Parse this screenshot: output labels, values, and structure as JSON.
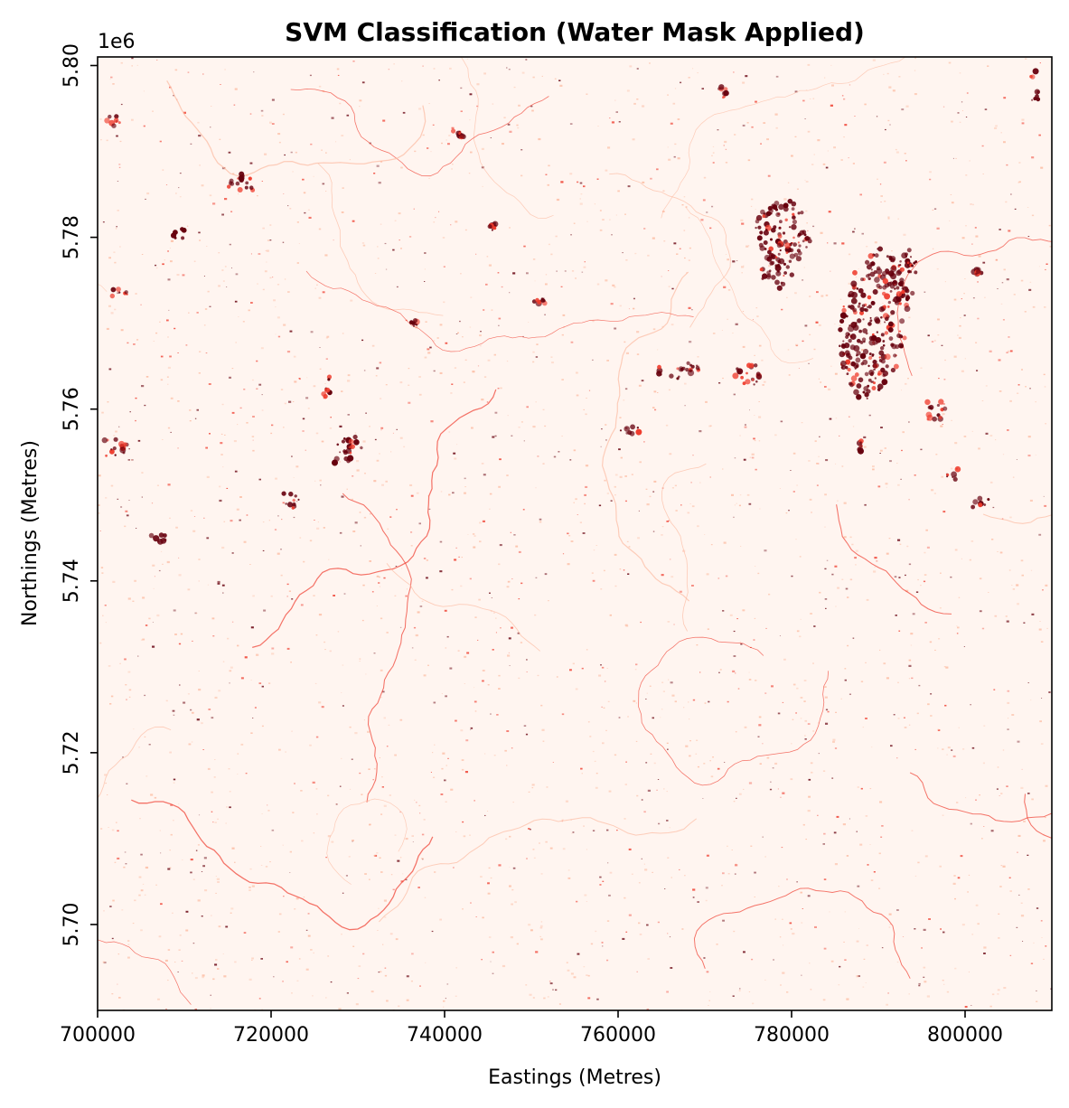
{
  "chart_data": {
    "type": "heatmap",
    "title": "SVM Classification (Water Mask Applied)",
    "xlabel": "Eastings (Metres)",
    "ylabel": "Northings (Metres)",
    "y_offset_label": "1e6",
    "xlim": [
      700000,
      810000
    ],
    "ylim": [
      5690000,
      5801000
    ],
    "x_ticks": [
      {
        "value": 700000,
        "label": "700000"
      },
      {
        "value": 720000,
        "label": "720000"
      },
      {
        "value": 740000,
        "label": "740000"
      },
      {
        "value": 760000,
        "label": "760000"
      },
      {
        "value": 780000,
        "label": "780000"
      },
      {
        "value": 800000,
        "label": "800000"
      }
    ],
    "y_ticks": [
      {
        "value": 5700000,
        "label": "5.70"
      },
      {
        "value": 5720000,
        "label": "5.72"
      },
      {
        "value": 5740000,
        "label": "5.74"
      },
      {
        "value": 5760000,
        "label": "5.76"
      },
      {
        "value": 5780000,
        "label": "5.78"
      },
      {
        "value": 5800000,
        "label": "5.80"
      }
    ],
    "colormap": "Reds",
    "colors": {
      "background": "#fff5f0",
      "low": "#fcbba1",
      "mid": "#ef3b2c",
      "high": "#67000d"
    },
    "patches": [
      {
        "x": 779000,
        "y": 5780500,
        "rx": 3200,
        "ry": 4000,
        "angle": 0,
        "intensity": 1.0
      },
      {
        "x": 778300,
        "y": 5776000,
        "rx": 1800,
        "ry": 2000,
        "angle": 0,
        "intensity": 1.0
      },
      {
        "x": 789500,
        "y": 5770000,
        "rx": 3800,
        "ry": 9000,
        "angle": 8,
        "intensity": 0.95
      },
      {
        "x": 793000,
        "y": 5775500,
        "rx": 1500,
        "ry": 3500,
        "angle": 10,
        "intensity": 0.9
      },
      {
        "x": 767000,
        "y": 5764500,
        "rx": 2400,
        "ry": 1200,
        "angle": 0,
        "intensity": 0.9
      },
      {
        "x": 774800,
        "y": 5764200,
        "rx": 1500,
        "ry": 1700,
        "angle": 0,
        "intensity": 0.9
      },
      {
        "x": 728800,
        "y": 5755000,
        "rx": 1500,
        "ry": 2000,
        "angle": 35,
        "intensity": 0.9
      },
      {
        "x": 726500,
        "y": 5762500,
        "rx": 800,
        "ry": 1500,
        "angle": 20,
        "intensity": 0.8
      },
      {
        "x": 722300,
        "y": 5749500,
        "rx": 1400,
        "ry": 900,
        "angle": 35,
        "intensity": 0.85
      },
      {
        "x": 761500,
        "y": 5757500,
        "rx": 1800,
        "ry": 500,
        "angle": -5,
        "intensity": 0.85
      },
      {
        "x": 709500,
        "y": 5780500,
        "rx": 1400,
        "ry": 700,
        "angle": -10,
        "intensity": 0.9
      },
      {
        "x": 707000,
        "y": 5745000,
        "rx": 900,
        "ry": 600,
        "angle": 0,
        "intensity": 0.85
      },
      {
        "x": 716500,
        "y": 5786000,
        "rx": 1500,
        "ry": 1500,
        "angle": 0,
        "intensity": 0.6
      },
      {
        "x": 751000,
        "y": 5772500,
        "rx": 700,
        "ry": 400,
        "angle": 0,
        "intensity": 0.85
      },
      {
        "x": 745500,
        "y": 5781500,
        "rx": 400,
        "ry": 700,
        "angle": 0,
        "intensity": 0.85
      },
      {
        "x": 736500,
        "y": 5770000,
        "rx": 400,
        "ry": 400,
        "angle": 0,
        "intensity": 0.9
      },
      {
        "x": 772000,
        "y": 5797000,
        "rx": 500,
        "ry": 800,
        "angle": 0,
        "intensity": 0.8
      },
      {
        "x": 808000,
        "y": 5797500,
        "rx": 600,
        "ry": 2000,
        "angle": 0,
        "intensity": 0.8
      },
      {
        "x": 741500,
        "y": 5792000,
        "rx": 1200,
        "ry": 600,
        "angle": 20,
        "intensity": 0.7
      },
      {
        "x": 796500,
        "y": 5760000,
        "rx": 1200,
        "ry": 1600,
        "angle": 10,
        "intensity": 0.7
      },
      {
        "x": 798500,
        "y": 5752500,
        "rx": 800,
        "ry": 900,
        "angle": 0,
        "intensity": 0.7
      },
      {
        "x": 801500,
        "y": 5749000,
        "rx": 1500,
        "ry": 600,
        "angle": -30,
        "intensity": 0.7
      },
      {
        "x": 788000,
        "y": 5755500,
        "rx": 300,
        "ry": 800,
        "angle": 0,
        "intensity": 0.8
      },
      {
        "x": 801500,
        "y": 5776000,
        "rx": 500,
        "ry": 300,
        "angle": 0,
        "intensity": 0.8
      },
      {
        "x": 702000,
        "y": 5755500,
        "rx": 1500,
        "ry": 1500,
        "angle": 0,
        "intensity": 0.5
      },
      {
        "x": 702500,
        "y": 5773500,
        "rx": 1000,
        "ry": 600,
        "angle": 0,
        "intensity": 0.6
      },
      {
        "x": 702000,
        "y": 5793500,
        "rx": 1000,
        "ry": 800,
        "angle": 0,
        "intensity": 0.5
      }
    ]
  }
}
